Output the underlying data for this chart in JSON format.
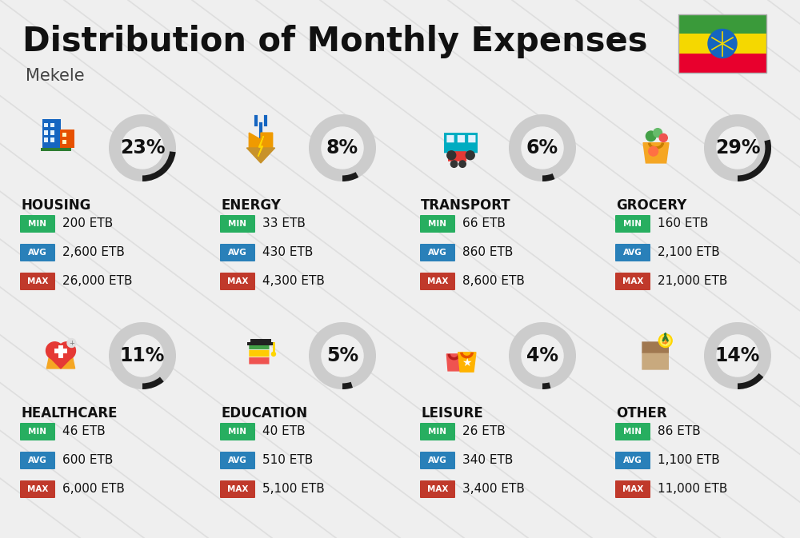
{
  "title": "Distribution of Monthly Expenses",
  "subtitle": "Mekele",
  "background_color": "#efefef",
  "categories": [
    {
      "name": "HOUSING",
      "percent": 23,
      "min_val": "200 ETB",
      "avg_val": "2,600 ETB",
      "max_val": "26,000 ETB",
      "row": 0,
      "col": 0
    },
    {
      "name": "ENERGY",
      "percent": 8,
      "min_val": "33 ETB",
      "avg_val": "430 ETB",
      "max_val": "4,300 ETB",
      "row": 0,
      "col": 1
    },
    {
      "name": "TRANSPORT",
      "percent": 6,
      "min_val": "66 ETB",
      "avg_val": "860 ETB",
      "max_val": "8,600 ETB",
      "row": 0,
      "col": 2
    },
    {
      "name": "GROCERY",
      "percent": 29,
      "min_val": "160 ETB",
      "avg_val": "2,100 ETB",
      "max_val": "21,000 ETB",
      "row": 0,
      "col": 3
    },
    {
      "name": "HEALTHCARE",
      "percent": 11,
      "min_val": "46 ETB",
      "avg_val": "600 ETB",
      "max_val": "6,000 ETB",
      "row": 1,
      "col": 0
    },
    {
      "name": "EDUCATION",
      "percent": 5,
      "min_val": "40 ETB",
      "avg_val": "510 ETB",
      "max_val": "5,100 ETB",
      "row": 1,
      "col": 1
    },
    {
      "name": "LEISURE",
      "percent": 4,
      "min_val": "26 ETB",
      "avg_val": "340 ETB",
      "max_val": "3,400 ETB",
      "row": 1,
      "col": 2
    },
    {
      "name": "OTHER",
      "percent": 14,
      "min_val": "86 ETB",
      "avg_val": "1,100 ETB",
      "max_val": "11,000 ETB",
      "row": 1,
      "col": 3
    }
  ],
  "min_color": "#27ae60",
  "avg_color": "#2980b9",
  "max_color": "#c0392b",
  "ring_color_active": "#1a1a1a",
  "ring_color_bg": "#cccccc",
  "title_fontsize": 30,
  "subtitle_fontsize": 15,
  "category_fontsize": 12,
  "value_fontsize": 11,
  "percent_fontsize": 17,
  "diag_color": "#dedede",
  "flag_green": "#3a9a3a",
  "flag_yellow": "#f5d800",
  "flag_red": "#e8002d",
  "flag_blue": "#1565c0"
}
